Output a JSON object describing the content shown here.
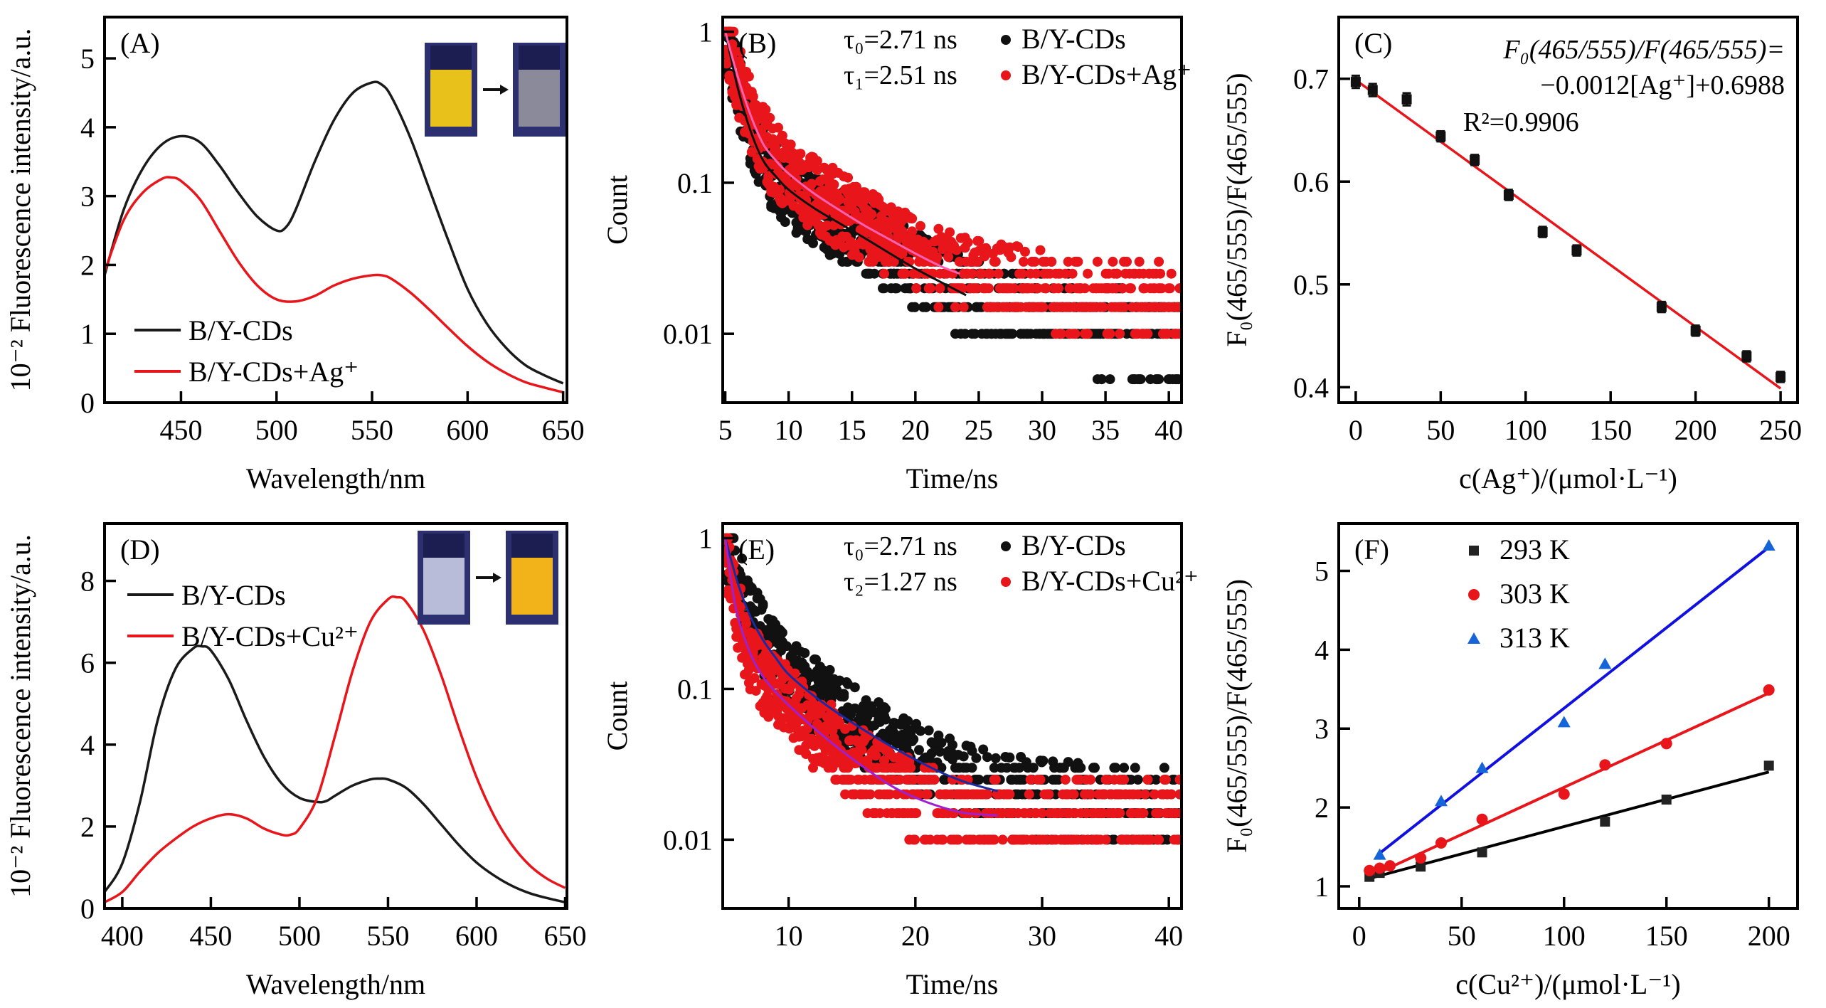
{
  "chart_data": [
    {
      "id": "A",
      "type": "line",
      "panel_label": "(A)",
      "xlabel": "Wavelength/nm",
      "ylabel": "10⁻² Fluorescence intensity/a.u.",
      "xlim": [
        410,
        652
      ],
      "ylim": [
        0,
        5.6
      ],
      "xticks": [
        450,
        500,
        550,
        600,
        650
      ],
      "yticks": [
        0,
        1,
        2,
        3,
        4,
        5
      ],
      "legend_position": "lower-left",
      "inset": {
        "description": "cuvette photos: yellow → grey",
        "from_color": "#e8c21a",
        "to_color": "#8a8a9a"
      },
      "series": [
        {
          "name": "B/Y-CDs",
          "color": "#1a1a1a",
          "x": [
            410,
            420,
            430,
            440,
            450,
            460,
            470,
            480,
            490,
            500,
            505,
            510,
            520,
            530,
            540,
            550,
            555,
            560,
            570,
            580,
            590,
            600,
            610,
            620,
            630,
            640,
            650
          ],
          "y": [
            1.85,
            2.8,
            3.4,
            3.75,
            3.87,
            3.78,
            3.45,
            3.05,
            2.7,
            2.5,
            2.55,
            2.8,
            3.5,
            4.1,
            4.5,
            4.65,
            4.62,
            4.45,
            3.85,
            3.1,
            2.35,
            1.65,
            1.15,
            0.8,
            0.55,
            0.4,
            0.28
          ]
        },
        {
          "name": "B/Y-CDs+Ag⁺",
          "color": "#e8161b",
          "x": [
            410,
            420,
            430,
            440,
            445,
            450,
            460,
            470,
            480,
            490,
            500,
            510,
            520,
            530,
            540,
            550,
            555,
            560,
            570,
            580,
            590,
            600,
            610,
            620,
            630,
            640,
            650
          ],
          "y": [
            1.9,
            2.65,
            3.05,
            3.25,
            3.27,
            3.22,
            2.95,
            2.5,
            2.05,
            1.7,
            1.5,
            1.47,
            1.55,
            1.7,
            1.8,
            1.85,
            1.85,
            1.8,
            1.6,
            1.35,
            1.08,
            0.82,
            0.6,
            0.43,
            0.3,
            0.22,
            0.15
          ]
        }
      ]
    },
    {
      "id": "B",
      "type": "scatter",
      "panel_label": "(B)",
      "xlabel": "Time/ns",
      "ylabel": "Count",
      "yscale": "log",
      "xlim": [
        4.8,
        41
      ],
      "ylim": [
        0.0035,
        1.25
      ],
      "xticks": [
        5,
        10,
        15,
        20,
        25,
        30,
        35,
        40
      ],
      "yticks": [
        1,
        0.1,
        0.01
      ],
      "ytick_labels": [
        "1",
        "0.1",
        "0.01"
      ],
      "annotations": [
        "τ₀=2.71 ns",
        "τ₁=2.51 ns"
      ],
      "legend_position": "top-right",
      "series": [
        {
          "name": "B/Y-CDs",
          "color": "#111111",
          "tau_ns": 2.71,
          "fit_color": "#111111",
          "fit_x": [
            5,
            6,
            7,
            8,
            9,
            10,
            12,
            14,
            16,
            18,
            20,
            22,
            24
          ],
          "fit_y": [
            1,
            0.42,
            0.22,
            0.14,
            0.11,
            0.09,
            0.068,
            0.054,
            0.043,
            0.034,
            0.027,
            0.022,
            0.018
          ]
        },
        {
          "name": "B/Y-CDs+Ag⁺",
          "color": "#e8161b",
          "tau_ns": 2.51,
          "fit_color": "#ff5fb0",
          "fit_x": [
            5,
            6,
            7,
            8,
            9,
            10,
            12,
            14,
            16,
            18,
            20,
            22,
            23.5
          ],
          "fit_y": [
            1,
            0.5,
            0.28,
            0.18,
            0.14,
            0.115,
            0.085,
            0.066,
            0.052,
            0.042,
            0.034,
            0.028,
            0.025
          ]
        }
      ],
      "noise_floor_levels": [
        0.005,
        0.01,
        0.015,
        0.02,
        0.025,
        0.03
      ]
    },
    {
      "id": "C",
      "type": "scatter",
      "panel_label": "(C)",
      "xlabel": "c(Ag⁺)/(μmol·L⁻¹)",
      "ylabel": "F₀(465/555)/F(465/555)",
      "xlim": [
        -10,
        260
      ],
      "ylim": [
        0.385,
        0.76
      ],
      "xticks": [
        0,
        50,
        100,
        150,
        200,
        250
      ],
      "yticks": [
        0.4,
        0.5,
        0.6,
        0.7
      ],
      "equation_line1": "F₀(465/555)/F(465/555)=",
      "equation_line2": "−0.0012[Ag⁺]+0.6988",
      "r2_label": "R²=0.9906",
      "fit": {
        "slope": -0.0012,
        "intercept": 0.6988,
        "color": "#e8161b",
        "x_range": [
          0,
          250
        ]
      },
      "points": {
        "color": "#111111",
        "x": [
          0,
          10,
          30,
          50,
          70,
          90,
          110,
          130,
          180,
          200,
          230,
          250
        ],
        "y": [
          0.697,
          0.689,
          0.68,
          0.644,
          0.621,
          0.587,
          0.551,
          0.533,
          0.478,
          0.455,
          0.43,
          0.41
        ],
        "err": [
          0.006,
          0.006,
          0.006,
          0.005,
          0.005,
          0.005,
          0.005,
          0.005,
          0.005,
          0.005,
          0.005,
          0.005
        ]
      }
    },
    {
      "id": "D",
      "type": "line",
      "panel_label": "(D)",
      "xlabel": "Wavelength/nm",
      "ylabel": "10⁻² Fluorescence intensity/a.u.",
      "xlim": [
        390,
        651
      ],
      "ylim": [
        0,
        9.4
      ],
      "xticks": [
        400,
        450,
        500,
        550,
        600,
        650
      ],
      "yticks": [
        0,
        2,
        4,
        6,
        8
      ],
      "legend_position": "top-left",
      "inset": {
        "description": "cuvette photos: grey-blue → orange-yellow",
        "from_color": "#b8bcd8",
        "to_color": "#f2b21a"
      },
      "series": [
        {
          "name": "B/Y-CDs",
          "color": "#1a1a1a",
          "x": [
            390,
            400,
            410,
            420,
            430,
            440,
            445,
            450,
            460,
            470,
            480,
            490,
            500,
            510,
            515,
            520,
            530,
            540,
            545,
            550,
            560,
            570,
            580,
            590,
            600,
            610,
            620,
            630,
            640,
            650
          ],
          "y": [
            0.4,
            1.1,
            2.6,
            4.6,
            5.85,
            6.35,
            6.4,
            6.3,
            5.6,
            4.6,
            3.7,
            3.05,
            2.7,
            2.6,
            2.62,
            2.75,
            3.0,
            3.15,
            3.17,
            3.15,
            2.95,
            2.55,
            2.05,
            1.55,
            1.12,
            0.8,
            0.55,
            0.37,
            0.25,
            0.15
          ]
        },
        {
          "name": "B/Y-CDs+Cu²⁺",
          "color": "#e8161b",
          "x": [
            390,
            400,
            410,
            420,
            430,
            440,
            450,
            460,
            470,
            480,
            490,
            495,
            500,
            510,
            520,
            530,
            540,
            550,
            555,
            560,
            570,
            580,
            590,
            600,
            610,
            620,
            630,
            640,
            650
          ],
          "y": [
            0.15,
            0.4,
            0.9,
            1.35,
            1.7,
            2.0,
            2.2,
            2.3,
            2.2,
            1.95,
            1.8,
            1.8,
            1.95,
            2.7,
            4.2,
            5.8,
            7.0,
            7.55,
            7.6,
            7.5,
            6.8,
            5.7,
            4.4,
            3.2,
            2.25,
            1.55,
            1.05,
            0.72,
            0.5
          ]
        }
      ]
    },
    {
      "id": "E",
      "type": "scatter",
      "panel_label": "(E)",
      "xlabel": "Time/ns",
      "ylabel": "Count",
      "yscale": "log",
      "xlim": [
        4.8,
        41
      ],
      "ylim": [
        0.0035,
        1.25
      ],
      "xticks": [
        10,
        20,
        30,
        40
      ],
      "yticks": [
        1,
        0.1,
        0.01
      ],
      "ytick_labels": [
        "1",
        "0.1",
        "0.01"
      ],
      "annotations": [
        "τ₀=2.71 ns",
        "τ₂=1.27 ns"
      ],
      "legend_position": "top-right",
      "series": [
        {
          "name": "B/Y-CDs",
          "color": "#111111",
          "tau_ns": 2.71,
          "fit_color": "#1a2aa0",
          "fit_x": [
            5,
            6,
            7,
            8,
            9,
            10,
            12,
            14,
            16,
            18,
            20,
            22,
            24,
            26.5
          ],
          "fit_y": [
            1,
            0.5,
            0.3,
            0.21,
            0.16,
            0.125,
            0.09,
            0.068,
            0.053,
            0.042,
            0.034,
            0.028,
            0.024,
            0.021
          ]
        },
        {
          "name": "B/Y-CDs+Cu²⁺",
          "color": "#e8161b",
          "tau_ns": 1.27,
          "fit_color": "#a020d0",
          "fit_x": [
            5,
            5.5,
            6,
            7,
            8,
            9,
            10,
            12,
            14,
            16,
            18,
            20,
            22,
            24,
            26.5
          ],
          "fit_y": [
            1,
            0.5,
            0.3,
            0.17,
            0.12,
            0.095,
            0.078,
            0.055,
            0.04,
            0.03,
            0.023,
            0.019,
            0.0165,
            0.015,
            0.0145
          ]
        }
      ],
      "noise_floor_levels": [
        0.005,
        0.01,
        0.015,
        0.02,
        0.025,
        0.03
      ]
    },
    {
      "id": "F",
      "type": "scatter",
      "panel_label": "(F)",
      "xlabel": "c(Cu²⁺)/(μmol·L⁻¹)",
      "ylabel": "F₀(465/555)/F(465/555)",
      "xlim": [
        -10,
        214
      ],
      "ylim": [
        0.72,
        5.6
      ],
      "xticks": [
        0,
        50,
        100,
        150,
        200
      ],
      "yticks": [
        1,
        2,
        3,
        4,
        5
      ],
      "legend_position": "top-left",
      "series": [
        {
          "name": "293 K",
          "marker": "square",
          "color": "#222222",
          "x": [
            5,
            10,
            30,
            60,
            120,
            150,
            200
          ],
          "y": [
            1.12,
            1.17,
            1.25,
            1.43,
            1.82,
            2.1,
            2.53
          ],
          "fit": {
            "x": [
              5,
              200
            ],
            "y": [
              1.1,
              2.45
            ]
          }
        },
        {
          "name": "303 K",
          "marker": "circle",
          "color": "#e8161b",
          "x": [
            5,
            10,
            15,
            30,
            40,
            60,
            100,
            120,
            150,
            200
          ],
          "y": [
            1.2,
            1.23,
            1.26,
            1.36,
            1.55,
            1.85,
            2.17,
            2.54,
            2.81,
            3.49
          ],
          "fit": {
            "x": [
              5,
              200
            ],
            "y": [
              1.12,
              3.45
            ]
          }
        },
        {
          "name": "313 K",
          "marker": "triangle",
          "color": "#1565d8",
          "x": [
            10,
            40,
            60,
            100,
            120,
            200
          ],
          "y": [
            1.4,
            2.08,
            2.5,
            3.08,
            3.82,
            5.32
          ],
          "fit": {
            "x": [
              10,
              200
            ],
            "y": [
              1.42,
              5.3
            ]
          }
        }
      ]
    }
  ]
}
